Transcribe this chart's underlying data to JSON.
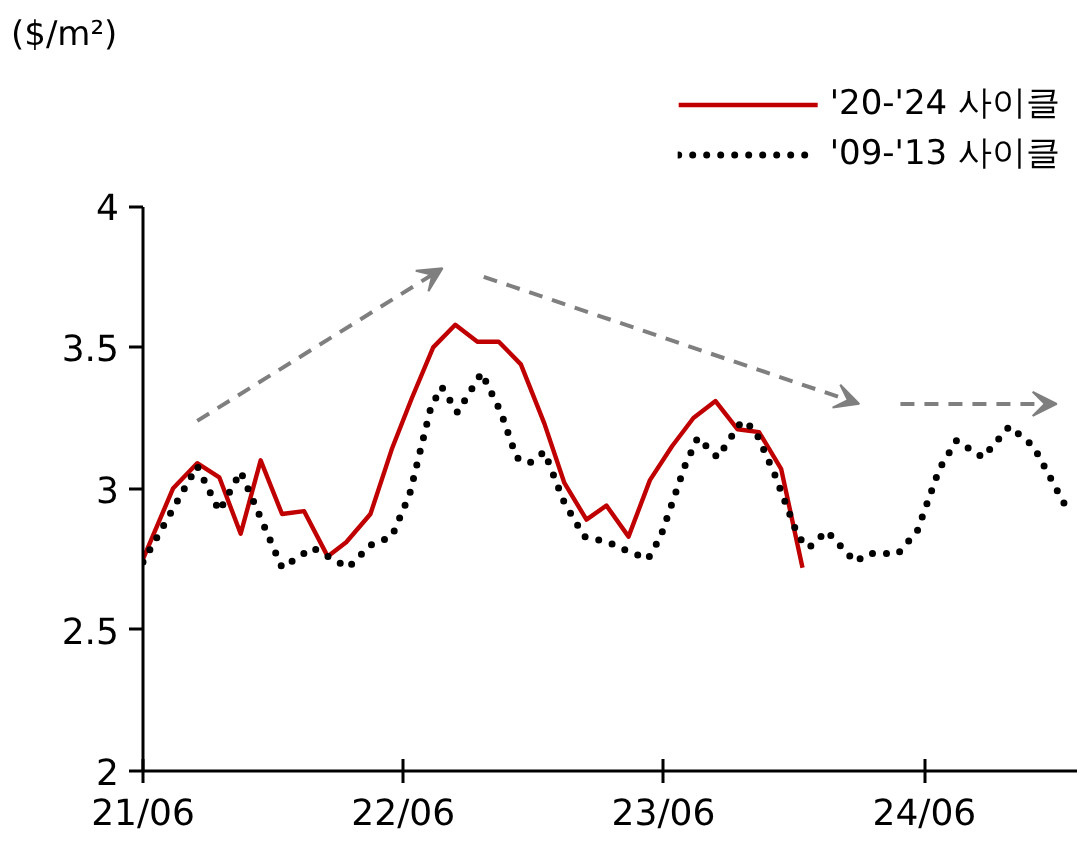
{
  "chart_data": {
    "type": "line",
    "ylabel": "($/m²)",
    "legend": "top right",
    "grid": false,
    "marker": "none",
    "xlim": [
      "2021-06",
      "2025-01"
    ],
    "xticks": [
      {
        "value": "2021-06",
        "label": "21/06"
      },
      {
        "value": "2022-06",
        "label": "22/06"
      },
      {
        "value": "2023-06",
        "label": "23/06"
      },
      {
        "value": "2024-06",
        "label": "24/06"
      }
    ],
    "ylim": [
      2,
      4
    ],
    "yticks": [
      2,
      2.5,
      3,
      3.5,
      4
    ],
    "series": [
      {
        "name": "'20-'24 사이클",
        "color": "#c00000",
        "line_style": "solid",
        "x": [
          "2021-06-01",
          "2021-07-13",
          "2021-08-16",
          "2021-09-16",
          "2021-10-16",
          "2021-11-13",
          "2021-12-13",
          "2022-01-13",
          "2022-02-15",
          "2022-03-13",
          "2022-04-16",
          "2022-05-16",
          "2022-06-13",
          "2022-07-13",
          "2022-08-13",
          "2022-09-13",
          "2022-10-13",
          "2022-11-13",
          "2022-12-16",
          "2023-01-13",
          "2023-02-13",
          "2023-03-13",
          "2023-04-13",
          "2023-05-13",
          "2023-06-13",
          "2023-07-13",
          "2023-08-13",
          "2023-09-13",
          "2023-10-13",
          "2023-11-13",
          "2023-12-13"
        ],
        "values": [
          2.75,
          3.0,
          3.09,
          3.04,
          2.84,
          3.1,
          2.91,
          2.92,
          2.76,
          2.81,
          2.91,
          3.14,
          3.32,
          3.5,
          3.58,
          3.52,
          3.52,
          3.44,
          3.23,
          3.02,
          2.89,
          2.94,
          2.83,
          3.03,
          3.15,
          3.25,
          3.31,
          3.21,
          3.2,
          3.07,
          2.72
        ]
      },
      {
        "name": "'09-'13 사이클",
        "color": "#000000",
        "line_style": "dotted",
        "x": [
          "2021-06-01",
          "2021-08-16",
          "2021-09-16",
          "2021-10-16",
          "2021-12-13",
          "2022-01-25",
          "2022-03-16",
          "2022-04-16",
          "2022-05-16",
          "2022-06-10",
          "2022-07-10",
          "2022-07-25",
          "2022-08-16",
          "2022-09-19",
          "2022-10-16",
          "2022-11-07",
          "2022-11-25",
          "2022-12-16",
          "2023-01-13",
          "2023-02-10",
          "2023-03-16",
          "2023-04-01",
          "2023-05-10",
          "2023-05-28",
          "2023-07-01",
          "2023-07-19",
          "2023-08-16",
          "2023-09-19",
          "2023-10-07",
          "2023-11-04",
          "2023-12-07",
          "2023-12-22",
          "2024-01-16",
          "2024-02-25",
          "2024-03-13",
          "2024-04-25",
          "2024-05-22",
          "2024-06-22",
          "2024-07-16",
          "2024-08-22",
          "2024-09-28",
          "2024-11-01",
          "2024-12-07",
          "2024-12-22"
        ],
        "values": [
          2.74,
          3.08,
          2.92,
          3.06,
          2.72,
          2.79,
          2.72,
          2.8,
          2.83,
          2.98,
          3.29,
          3.36,
          3.27,
          3.41,
          3.27,
          3.11,
          3.09,
          3.13,
          2.95,
          2.83,
          2.81,
          2.79,
          2.75,
          2.83,
          3.08,
          3.18,
          3.11,
          3.24,
          3.21,
          3.05,
          2.83,
          2.79,
          2.85,
          2.74,
          2.77,
          2.77,
          2.85,
          3.07,
          3.17,
          3.11,
          3.22,
          3.15,
          2.98,
          2.91
        ]
      }
    ]
  }
}
